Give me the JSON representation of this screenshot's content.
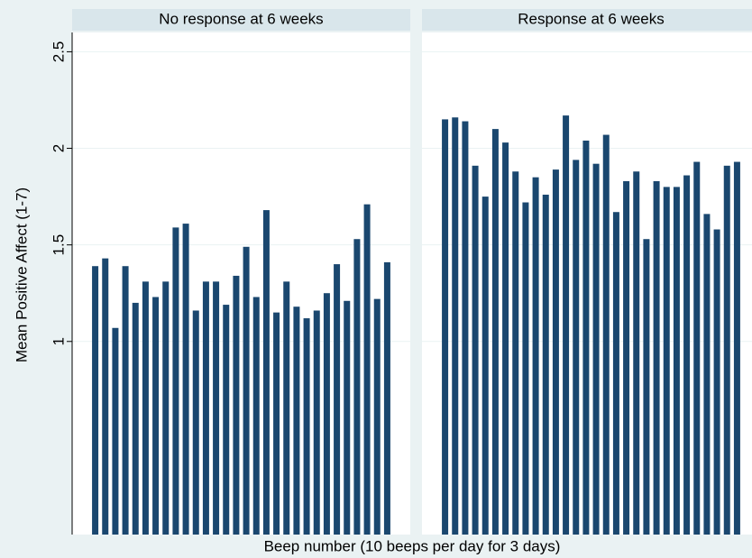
{
  "chart_data": {
    "type": "bar",
    "y_label": "Mean Positive Affect (1-7)",
    "x_label": "Beep number (10 beeps per day for 3 days)",
    "color": "#1a476f",
    "ylim": [
      0,
      2.6
    ],
    "yticks": [
      1,
      1.5,
      2,
      2.5
    ],
    "grid": true,
    "panels": [
      {
        "title": "No response at 6 weeks",
        "values": [
          1.39,
          1.43,
          1.07,
          1.39,
          1.2,
          1.31,
          1.23,
          1.31,
          1.59,
          1.61,
          1.16,
          1.31,
          1.31,
          1.19,
          1.34,
          1.49,
          1.23,
          1.68,
          1.15,
          1.31,
          1.18,
          1.12,
          1.16,
          1.25,
          1.4,
          1.21,
          1.53,
          1.71,
          1.22,
          1.41
        ]
      },
      {
        "title": "Response at 6 weeks",
        "values": [
          2.15,
          2.16,
          2.14,
          1.91,
          1.75,
          2.1,
          2.03,
          1.88,
          1.72,
          1.85,
          1.76,
          1.89,
          2.17,
          1.94,
          2.04,
          1.92,
          2.07,
          1.67,
          1.83,
          1.88,
          1.53,
          1.83,
          1.8,
          1.8,
          1.86,
          1.93,
          1.66,
          1.58,
          1.91,
          1.93
        ]
      }
    ]
  }
}
